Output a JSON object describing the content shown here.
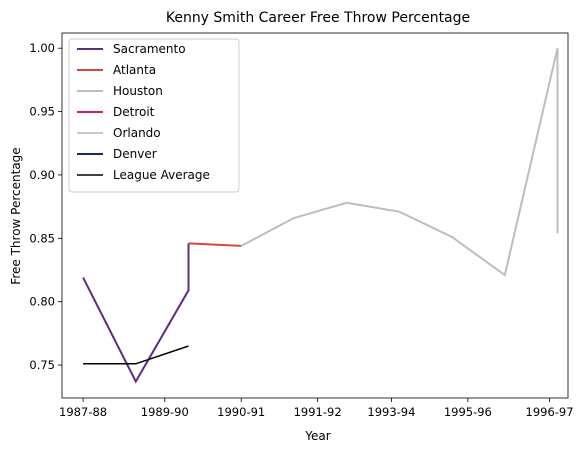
{
  "chart_data": {
    "type": "line",
    "title": "Kenny Smith Career Free Throw Percentage",
    "xlabel": "Year",
    "ylabel": "Free Throw Percentage",
    "x_tick_labels": [
      "1987-88",
      "1989-90",
      "1990-91",
      "1991-92",
      "1993-94",
      "1995-96",
      "1996-97"
    ],
    "x_tick_positions": [
      0,
      1.55,
      3,
      4.45,
      5.85,
      7.3,
      8.85
    ],
    "xlim": [
      -0.4,
      9.2
    ],
    "y_ticks": [
      0.75,
      0.8,
      0.85,
      0.9,
      0.95,
      1.0
    ],
    "y_tick_labels": [
      "0.75",
      "0.80",
      "0.85",
      "0.90",
      "0.95",
      "1.00"
    ],
    "ylim": [
      0.724,
      1.012
    ],
    "legend_position": "upper-left",
    "series": [
      {
        "name": "Sacramento",
        "color": "#5b2d86",
        "width": 2,
        "points": [
          [
            0,
            0.819
          ],
          [
            1,
            0.737
          ],
          [
            2,
            0.809
          ],
          [
            2,
            0.846
          ]
        ]
      },
      {
        "name": "Atlanta",
        "color": "#e0433f",
        "width": 2,
        "points": [
          [
            2,
            0.846
          ],
          [
            3,
            0.844
          ]
        ]
      },
      {
        "name": "Houston",
        "color": "#bdbdbd",
        "width": 2,
        "points": [
          [
            3,
            0.844
          ],
          [
            4,
            0.866
          ],
          [
            5,
            0.878
          ],
          [
            6,
            0.871
          ],
          [
            7,
            0.851
          ],
          [
            8,
            0.821
          ],
          [
            9,
            1.0
          ],
          [
            9,
            0.854
          ]
        ]
      },
      {
        "name": "Detroit",
        "color": "#d6214f",
        "width": 2,
        "points": []
      },
      {
        "name": "Orlando",
        "color": "#c8c8c8",
        "width": 2,
        "points": []
      },
      {
        "name": "Denver",
        "color": "#1b2b5e",
        "width": 2,
        "points": []
      },
      {
        "name": "League Average",
        "color": "#000000",
        "width": 1.5,
        "points": [
          [
            0,
            0.751
          ],
          [
            1,
            0.751
          ],
          [
            2,
            0.765
          ]
        ]
      }
    ]
  }
}
